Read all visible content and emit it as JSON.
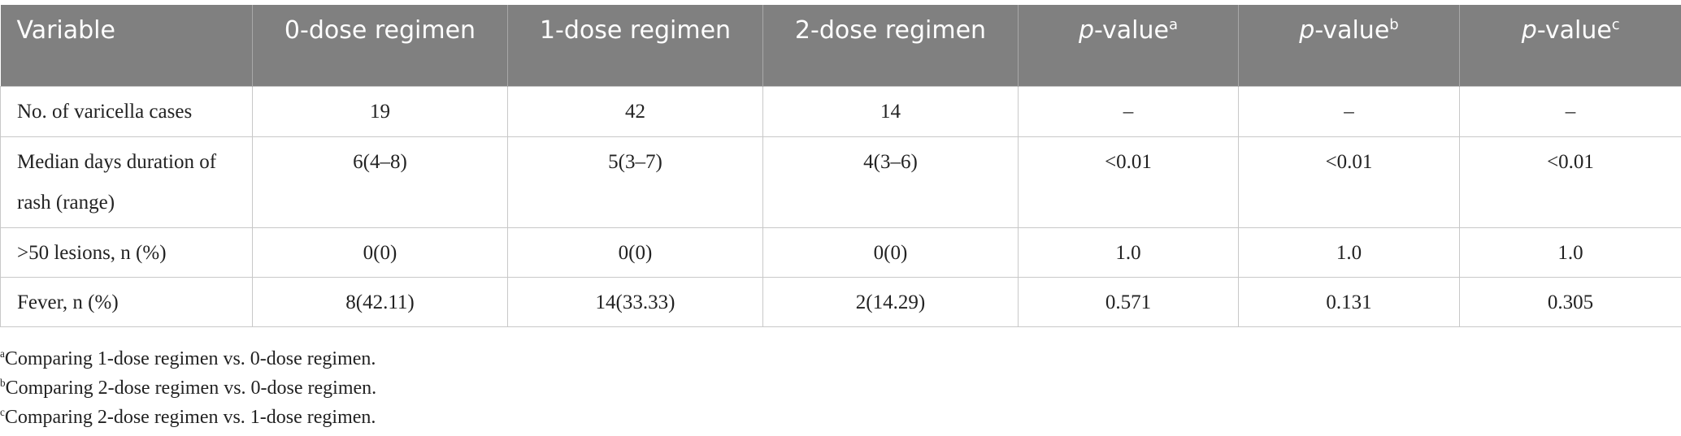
{
  "table": {
    "header": [
      {
        "text": "Variable"
      },
      {
        "text": "0-dose regimen"
      },
      {
        "text": "1-dose regimen"
      },
      {
        "text": "2-dose regimen"
      },
      {
        "italic": "p",
        "text": "-value",
        "sup": "a"
      },
      {
        "italic": "p",
        "text": "-value",
        "sup": "b"
      },
      {
        "italic": "p",
        "text": "-value",
        "sup": "c"
      }
    ],
    "rows": [
      [
        "No. of varicella cases",
        "19",
        "42",
        "14",
        "–",
        "–",
        "–"
      ],
      [
        "Median days duration of rash (range)",
        "6(4–8)",
        "5(3–7)",
        "4(3–6)",
        "<0.01",
        "<0.01",
        "<0.01"
      ],
      [
        ">50 lesions, n (%)",
        "0(0)",
        "0(0)",
        "0(0)",
        "1.0",
        "1.0",
        "1.0"
      ],
      [
        "Fever, n (%)",
        "8(42.11)",
        "14(33.33)",
        "2(14.29)",
        "0.571",
        "0.131",
        "0.305"
      ]
    ],
    "footnotes": [
      {
        "mark": "a",
        "text": "Comparing 1-dose regimen vs. 0-dose regimen."
      },
      {
        "mark": "b",
        "text": "Comparing 2-dose regimen vs. 0-dose regimen."
      },
      {
        "mark": "c",
        "text": "Comparing 2-dose regimen vs. 1-dose regimen."
      }
    ]
  }
}
